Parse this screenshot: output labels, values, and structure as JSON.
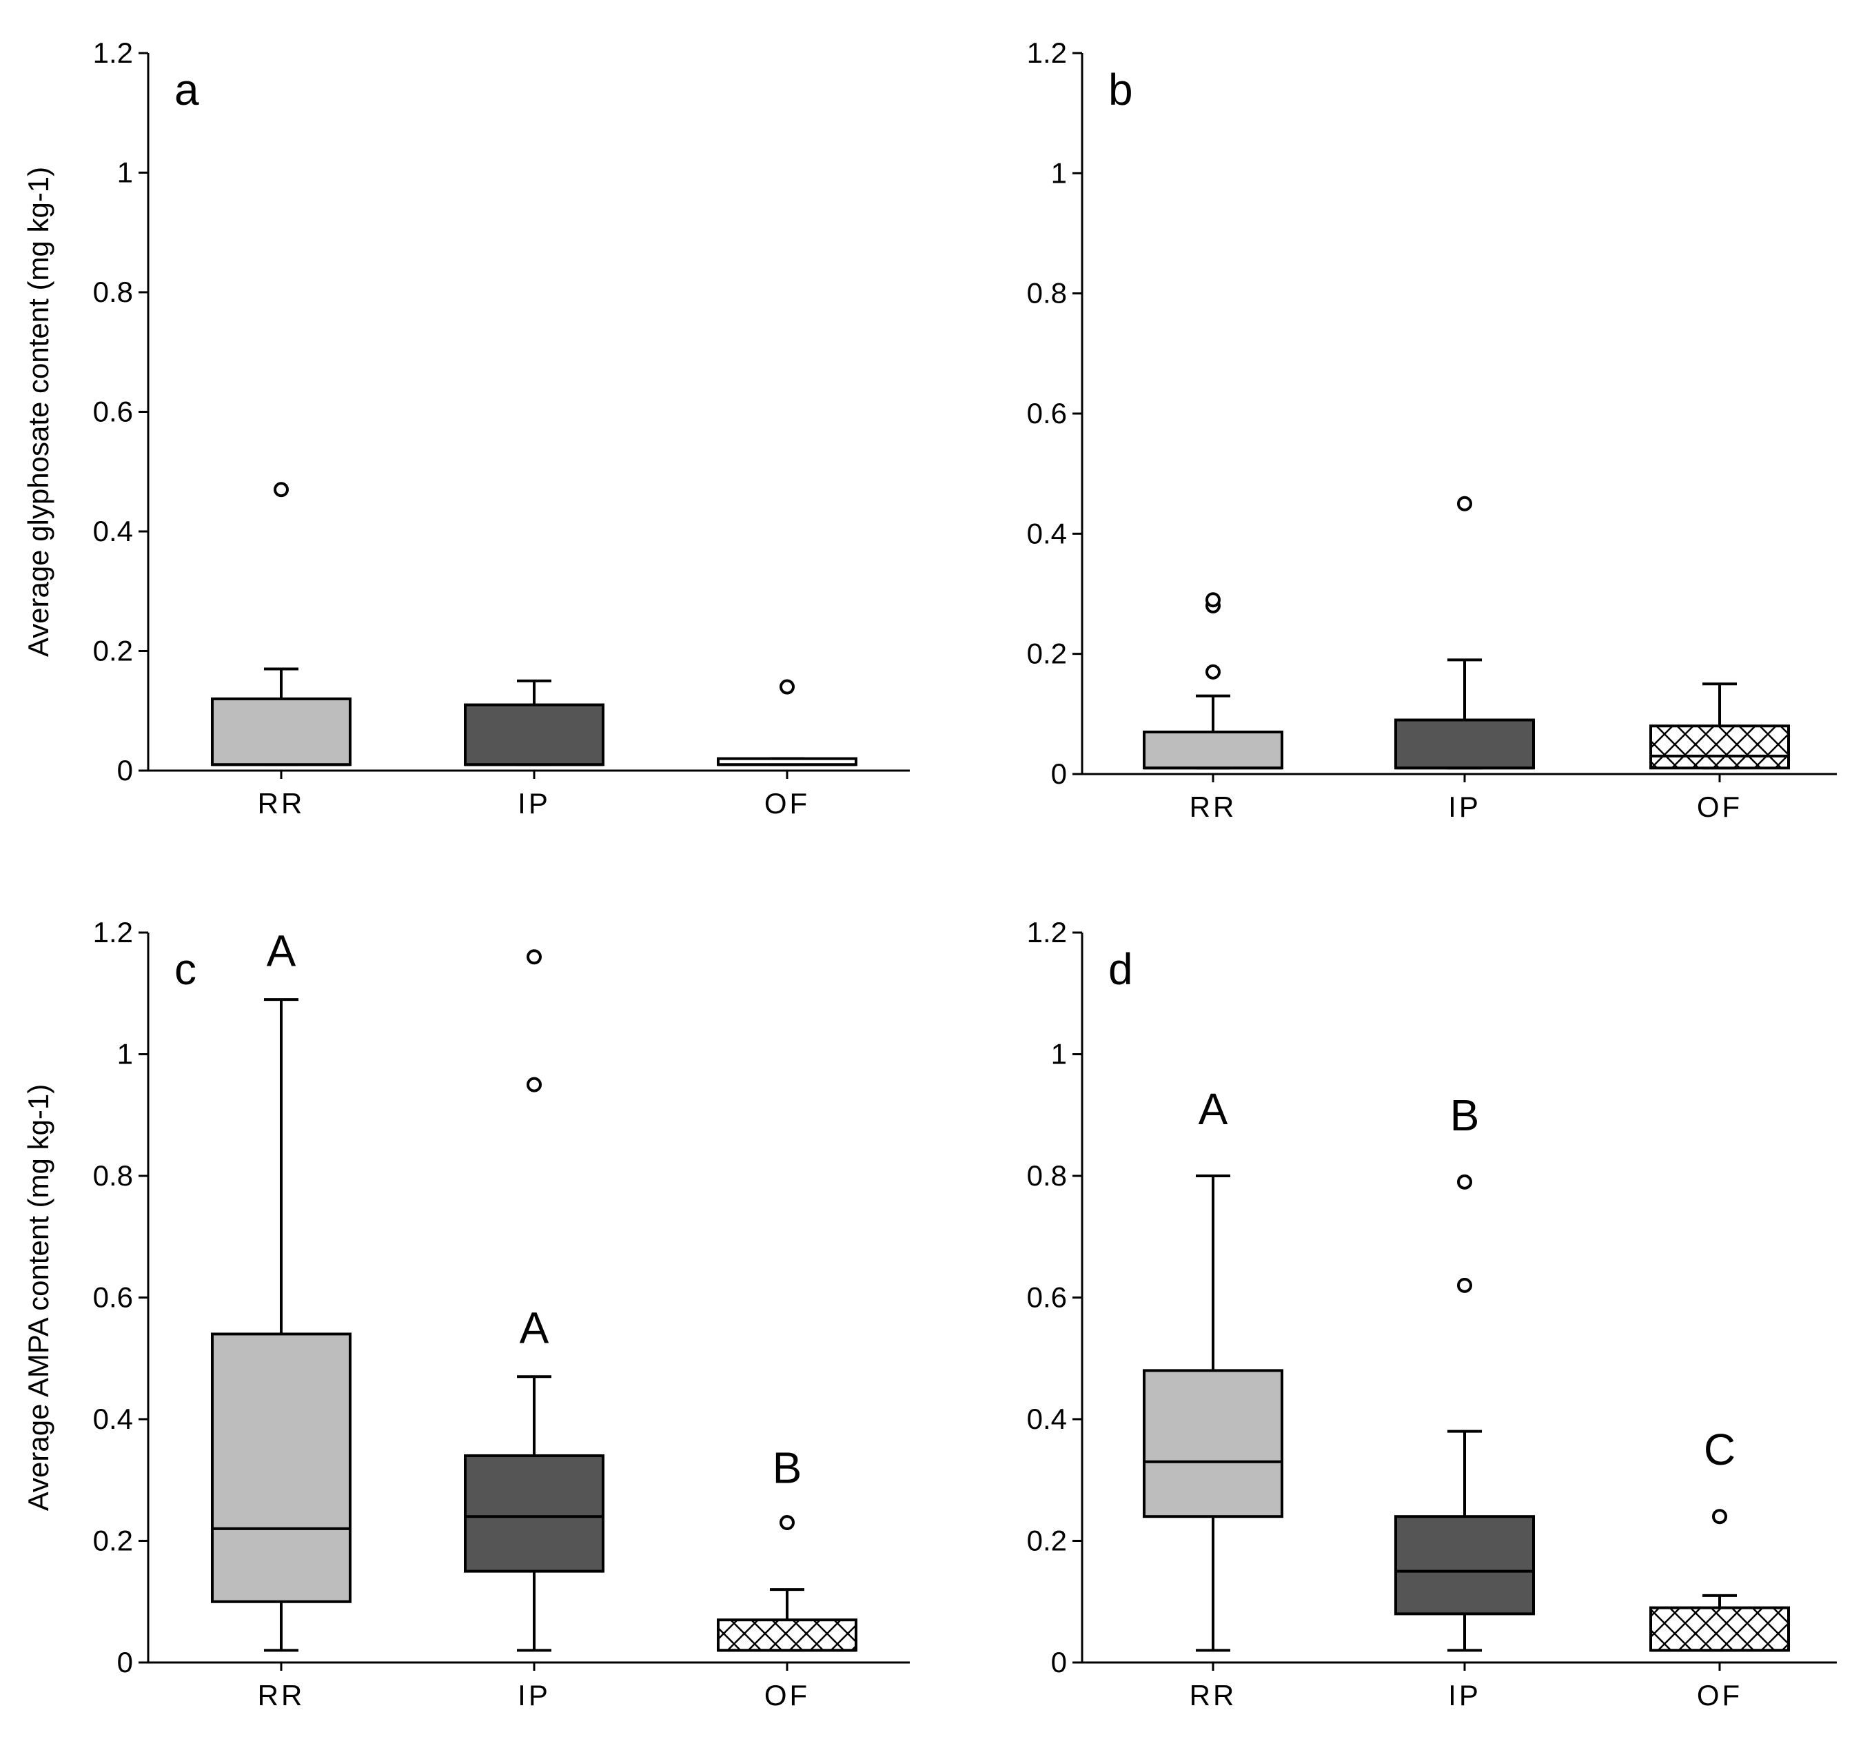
{
  "colors": {
    "RR": "#bdbdbd",
    "IP": "#555555",
    "OF": "#ffffff",
    "axis": "#000000"
  },
  "chart_data": [
    {
      "type": "box",
      "panel": "a",
      "ylabel": "Average glyphosate content (mg kg-1)",
      "ylim": [
        0,
        1.2
      ],
      "yticks": [
        "0",
        "0.2",
        "0.4",
        "0.6",
        "0.8",
        "1",
        "1.2"
      ],
      "categories": [
        "RR",
        "IP",
        "OF"
      ],
      "boxes": [
        {
          "category": "RR",
          "fill": "gray",
          "q1": 0.01,
          "median": 0.01,
          "q3": 0.12,
          "whisker_low": 0.01,
          "whisker_high": 0.17,
          "outliers": [
            0.47
          ]
        },
        {
          "category": "IP",
          "fill": "dark",
          "q1": 0.01,
          "median": 0.01,
          "q3": 0.11,
          "whisker_low": 0.01,
          "whisker_high": 0.15,
          "outliers": []
        },
        {
          "category": "OF",
          "fill": "white",
          "q1": 0.01,
          "median": 0.01,
          "q3": 0.02,
          "whisker_low": 0.01,
          "whisker_high": 0.02,
          "outliers": [
            0.14
          ]
        }
      ],
      "annotations": []
    },
    {
      "type": "box",
      "panel": "b",
      "ylabel": "",
      "ylim": [
        0,
        1.2
      ],
      "yticks": [
        "0",
        "0.2",
        "0.4",
        "0.6",
        "0.8",
        "1",
        "1.2"
      ],
      "categories": [
        "RR",
        "IP",
        "OF"
      ],
      "boxes": [
        {
          "category": "RR",
          "fill": "gray",
          "q1": 0.01,
          "median": 0.01,
          "q3": 0.07,
          "whisker_low": 0.01,
          "whisker_high": 0.13,
          "outliers": [
            0.17,
            0.28,
            0.29
          ]
        },
        {
          "category": "IP",
          "fill": "dark",
          "q1": 0.01,
          "median": 0.01,
          "q3": 0.09,
          "whisker_low": 0.01,
          "whisker_high": 0.19,
          "outliers": [
            0.45
          ]
        },
        {
          "category": "OF",
          "fill": "hatch",
          "q1": 0.01,
          "median": 0.03,
          "q3": 0.08,
          "whisker_low": 0.01,
          "whisker_high": 0.15,
          "outliers": []
        }
      ],
      "annotations": []
    },
    {
      "type": "box",
      "panel": "c",
      "ylabel": "Average AMPA content (mg kg-1)",
      "ylim": [
        0,
        1.2
      ],
      "yticks": [
        "0",
        "0.2",
        "0.4",
        "0.6",
        "0.8",
        "1",
        "1.2"
      ],
      "categories": [
        "RR",
        "IP",
        "OF"
      ],
      "boxes": [
        {
          "category": "RR",
          "fill": "gray",
          "q1": 0.1,
          "median": 0.22,
          "q3": 0.54,
          "whisker_low": 0.02,
          "whisker_high": 1.09,
          "outliers": []
        },
        {
          "category": "IP",
          "fill": "dark",
          "q1": 0.15,
          "median": 0.24,
          "q3": 0.34,
          "whisker_low": 0.02,
          "whisker_high": 0.47,
          "outliers": [
            0.95,
            1.16
          ]
        },
        {
          "category": "OF",
          "fill": "hatch",
          "q1": 0.02,
          "median": 0.02,
          "q3": 0.07,
          "whisker_low": 0.02,
          "whisker_high": 0.12,
          "outliers": [
            0.23
          ]
        }
      ],
      "annotations": [
        {
          "category": "RR",
          "text": "A",
          "y": 1.17
        },
        {
          "category": "IP",
          "text": "A",
          "y": 0.55
        },
        {
          "category": "OF",
          "text": "B",
          "y": 0.32
        }
      ]
    },
    {
      "type": "box",
      "panel": "d",
      "ylabel": "",
      "ylim": [
        0,
        1.2
      ],
      "yticks": [
        "0",
        "0.2",
        "0.4",
        "0.6",
        "0.8",
        "1",
        "1.2"
      ],
      "categories": [
        "RR",
        "IP",
        "OF"
      ],
      "boxes": [
        {
          "category": "RR",
          "fill": "gray",
          "q1": 0.24,
          "median": 0.33,
          "q3": 0.48,
          "whisker_low": 0.02,
          "whisker_high": 0.8,
          "outliers": []
        },
        {
          "category": "IP",
          "fill": "dark",
          "q1": 0.08,
          "median": 0.15,
          "q3": 0.24,
          "whisker_low": 0.02,
          "whisker_high": 0.38,
          "outliers": [
            0.62,
            0.79
          ]
        },
        {
          "category": "OF",
          "fill": "hatch",
          "q1": 0.02,
          "median": 0.02,
          "q3": 0.09,
          "whisker_low": 0.02,
          "whisker_high": 0.11,
          "outliers": [
            0.24
          ]
        }
      ],
      "annotations": [
        {
          "category": "RR",
          "text": "A",
          "y": 0.91
        },
        {
          "category": "IP",
          "text": "B",
          "y": 0.9
        },
        {
          "category": "OF",
          "text": "C",
          "y": 0.35
        }
      ]
    }
  ]
}
